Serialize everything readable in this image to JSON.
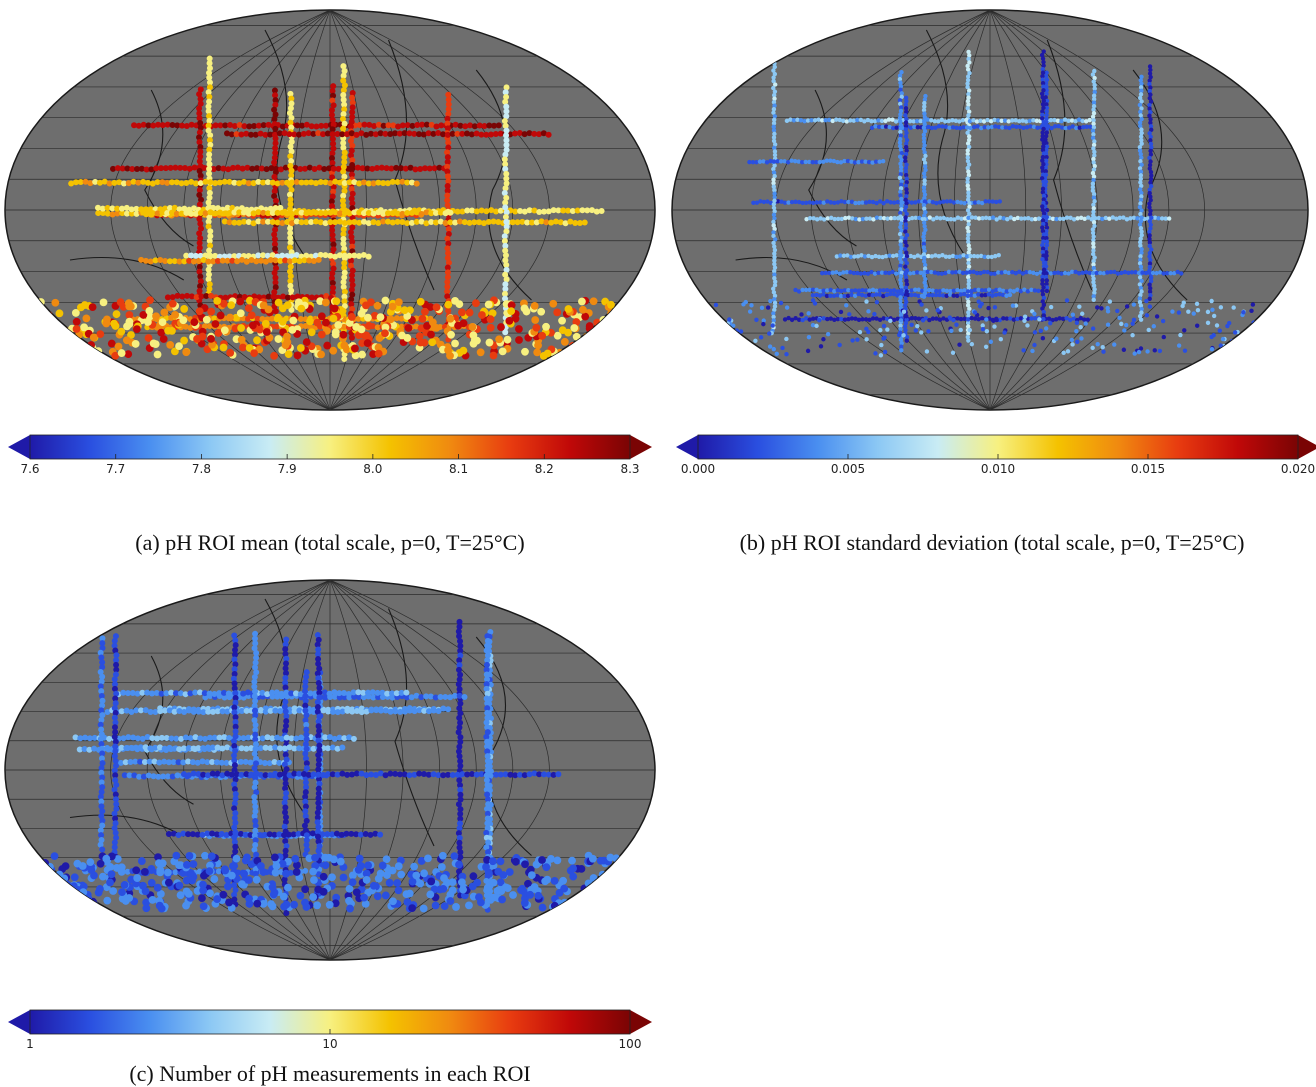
{
  "colors": {
    "land": "#6e6e6e",
    "coast": "#1a1a1a",
    "grid": "#2b2b2b",
    "background": "#ffffff",
    "colormap": [
      "#1f1aa8",
      "#2a4fe0",
      "#4a8ff0",
      "#8cc8f4",
      "#c9ecf4",
      "#f7f080",
      "#f4c200",
      "#f08a10",
      "#e83c10",
      "#c00808",
      "#7a0404"
    ]
  },
  "panels": [
    {
      "id": "a",
      "caption": "(a) pH ROI mean (total scale, p=0, T=25°C)",
      "variable": "pH ROI mean",
      "colorbar": {
        "scale": "linear",
        "range": [
          7.6,
          8.3
        ],
        "ticks": [
          "7.6",
          "7.7",
          "7.8",
          "7.9",
          "8.0",
          "8.1",
          "8.2",
          "8.3"
        ],
        "extend": "both"
      }
    },
    {
      "id": "b",
      "caption": "(b) pH ROI standard deviation (total scale, p=0, T=25°C)",
      "variable": "pH ROI standard deviation",
      "colorbar": {
        "scale": "linear",
        "range": [
          0.0,
          0.02
        ],
        "ticks": [
          "0.000",
          "0.005",
          "0.010",
          "0.015",
          "0.020"
        ],
        "extend": "both"
      }
    },
    {
      "id": "c",
      "caption": "(c) Number of pH measurements in each ROI",
      "variable": "Number of pH measurements",
      "colorbar": {
        "scale": "log",
        "range": [
          1,
          100
        ],
        "ticks": [
          "1",
          "10",
          "100"
        ],
        "extend": "both"
      }
    }
  ]
}
